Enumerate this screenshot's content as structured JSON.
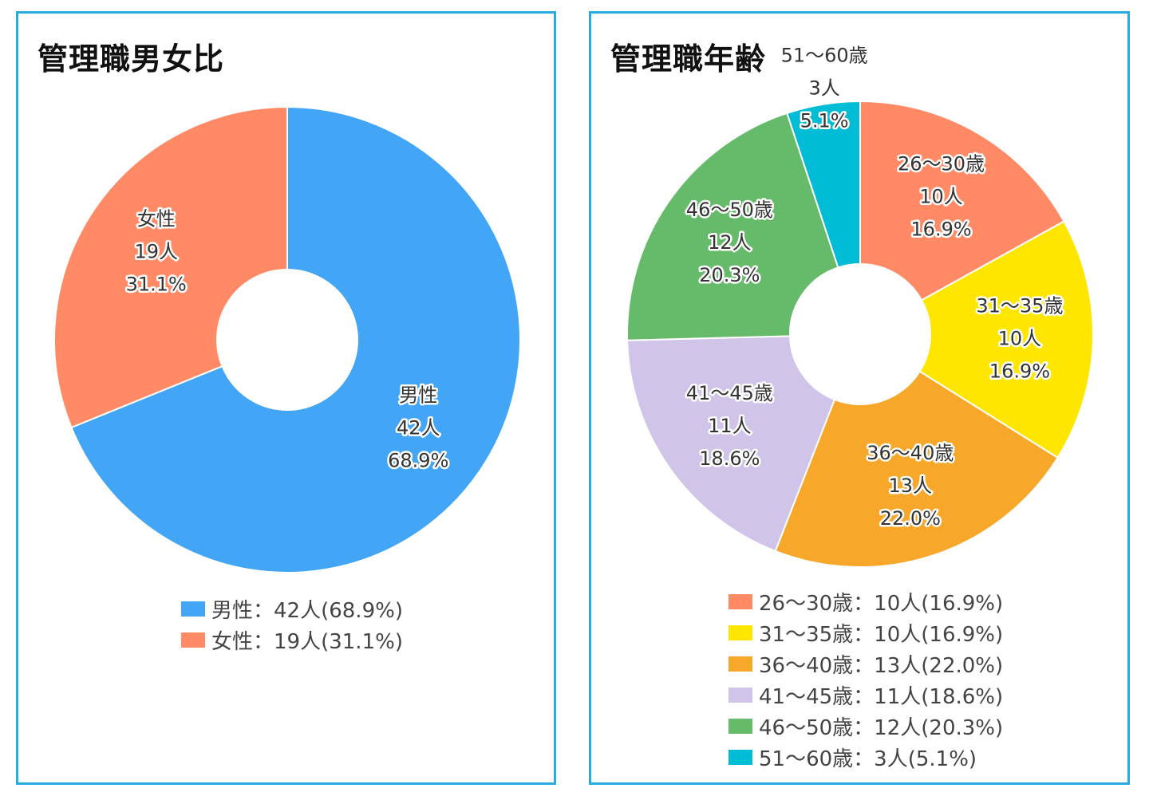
{
  "charts": [
    {
      "title": "管理職男女比",
      "chart_data": {
        "type": "pie",
        "title": "管理職男女比",
        "donut": true,
        "legend_position": "bottom",
        "slices": [
          {
            "name": "男性",
            "count_label": "42人",
            "percent_label": "68.9%",
            "value": 42,
            "percent": 68.9,
            "color": "#42a5f5",
            "legend_text": "男性：42人(68.9%)"
          },
          {
            "name": "女性",
            "count_label": "19人",
            "percent_label": "31.1%",
            "value": 19,
            "percent": 31.1,
            "color": "#ff8a65",
            "legend_text": "女性：19人(31.1%)"
          }
        ]
      }
    },
    {
      "title": "管理職年齢",
      "chart_data": {
        "type": "pie",
        "title": "管理職年齢",
        "donut": true,
        "legend_position": "bottom",
        "slices": [
          {
            "name": "26〜30歳",
            "count_label": "10人",
            "percent_label": "16.9%",
            "value": 10,
            "percent": 16.9,
            "color": "#ff8a65",
            "legend_text": "26〜30歳：10人(16.9%)"
          },
          {
            "name": "31〜35歳",
            "count_label": "10人",
            "percent_label": "16.9%",
            "value": 10,
            "percent": 16.9,
            "color": "#ffe600",
            "legend_text": "31〜35歳：10人(16.9%)"
          },
          {
            "name": "36〜40歳",
            "count_label": "13人",
            "percent_label": "22.0%",
            "value": 13,
            "percent": 22.0,
            "color": "#f7a72a",
            "legend_text": "36〜40歳：13人(22.0%)"
          },
          {
            "name": "41〜45歳",
            "count_label": "11人",
            "percent_label": "18.6%",
            "value": 11,
            "percent": 18.6,
            "color": "#d1c4e9",
            "legend_text": "41〜45歳：11人(18.6%)"
          },
          {
            "name": "46〜50歳",
            "count_label": "12人",
            "percent_label": "20.3%",
            "value": 12,
            "percent": 20.3,
            "color": "#66bb6a",
            "legend_text": "46〜50歳：12人(20.3%)"
          },
          {
            "name": "51〜60歳",
            "count_label": "3人",
            "percent_label": "5.1%",
            "value": 3,
            "percent": 5.1,
            "color": "#00bcd4",
            "legend_text": "51〜60歳：3人(5.1%)"
          }
        ]
      }
    }
  ]
}
